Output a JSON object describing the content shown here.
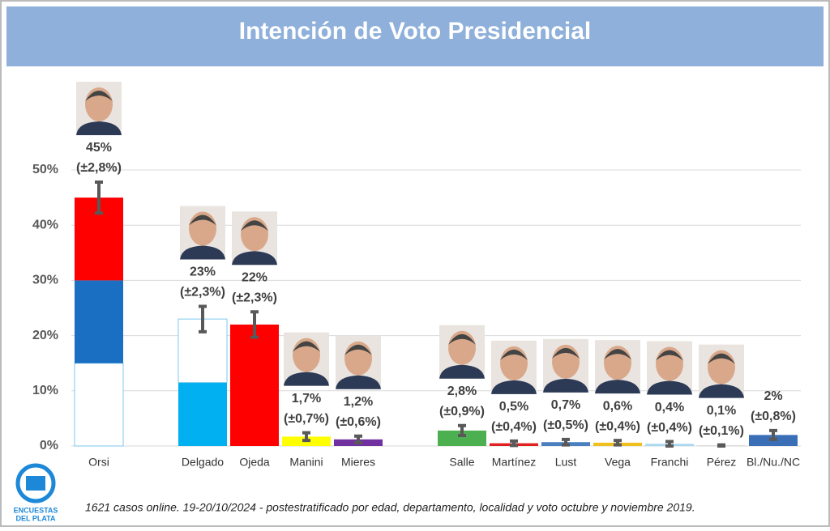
{
  "chart_data": {
    "type": "bar",
    "title": "Intención de Voto Presidencial",
    "categories": [
      "Orsi",
      null,
      "Delgado",
      "Ojeda",
      "Manini",
      "Mieres",
      null,
      "Salle",
      "Martínez",
      "Lust",
      "Vega",
      "Franchi",
      "Pérez",
      "Bl./Nu./NC"
    ],
    "values": [
      45,
      null,
      23,
      22,
      1.7,
      1.2,
      null,
      2.8,
      0.5,
      0.7,
      0.6,
      0.4,
      0.1,
      2
    ],
    "value_labels": [
      "45%",
      null,
      "23%",
      "22%",
      "1,7%",
      "1,2%",
      null,
      "2,8%",
      "0,5%",
      "0,7%",
      "0,6%",
      "0,4%",
      "0,1%",
      "2%"
    ],
    "errors": [
      2.8,
      null,
      2.3,
      2.3,
      0.7,
      0.6,
      null,
      0.9,
      0.4,
      0.5,
      0.4,
      0.4,
      0.1,
      0.8
    ],
    "error_labels": [
      "(±2,8%)",
      null,
      "(±2,3%)",
      "(±2,3%)",
      "(±0,7%)",
      "(±0,6%)",
      null,
      "(±0,9%)",
      "(±0,4%)",
      "(±0,5%)",
      "(±0,4%)",
      "(±0,4%)",
      "(±0,1%)",
      "(±0,8%)"
    ],
    "colors": [
      [
        "#ffffff",
        "#1a6fc2",
        "#ff0000"
      ],
      null,
      [
        "#00b0f0",
        "#ffffff"
      ],
      [
        "#ff0000"
      ],
      [
        "#ffff00"
      ],
      [
        "#7030a0"
      ],
      null,
      [
        "#4caf50"
      ],
      [
        "#e02020"
      ],
      [
        "#4a7fc0"
      ],
      [
        "#f0c020"
      ],
      [
        "#a8d8f0"
      ],
      [
        "#c8c8c8"
      ],
      [
        "#3a6fb8"
      ]
    ],
    "ylim": [
      0,
      50
    ],
    "yticks": [
      {
        "value": 0,
        "label": "0%"
      },
      {
        "value": 10,
        "label": "10%"
      },
      {
        "value": 20,
        "label": "20%"
      },
      {
        "value": 30,
        "label": "30%"
      },
      {
        "value": 40,
        "label": "40%"
      },
      {
        "value": 50,
        "label": "50%"
      }
    ],
    "grid": true,
    "footnote": "1621 casos online.  19-20/10/2024 - postestratificado por edad, departamento, localidad y voto octubre y noviembre 2019.",
    "logo": [
      "ENCUESTAS",
      "DEL PLATA"
    ]
  }
}
